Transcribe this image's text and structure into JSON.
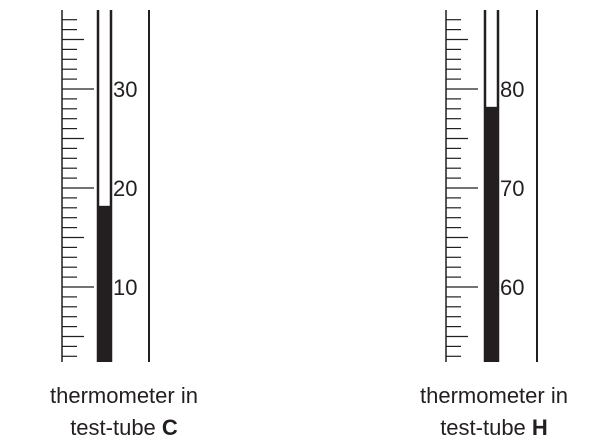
{
  "colors": {
    "ink": "#231f20",
    "background": "#ffffff"
  },
  "thermometers": [
    {
      "id": "C",
      "labels": [
        {
          "value": 10,
          "text": "10"
        },
        {
          "value": 20,
          "text": "20"
        },
        {
          "value": 30,
          "text": "30"
        }
      ],
      "reading": 18.2,
      "caption_line1": "thermometer in",
      "caption_line2_prefix": "test-tube ",
      "caption_line2_letter": "C"
    },
    {
      "id": "H",
      "labels": [
        {
          "value": 60,
          "text": "60"
        },
        {
          "value": 70,
          "text": "70"
        },
        {
          "value": 80,
          "text": "80"
        }
      ],
      "reading": 78.2,
      "caption_line1": "thermometer in",
      "caption_line2_prefix": "test-tube ",
      "caption_line2_letter": "H"
    }
  ]
}
